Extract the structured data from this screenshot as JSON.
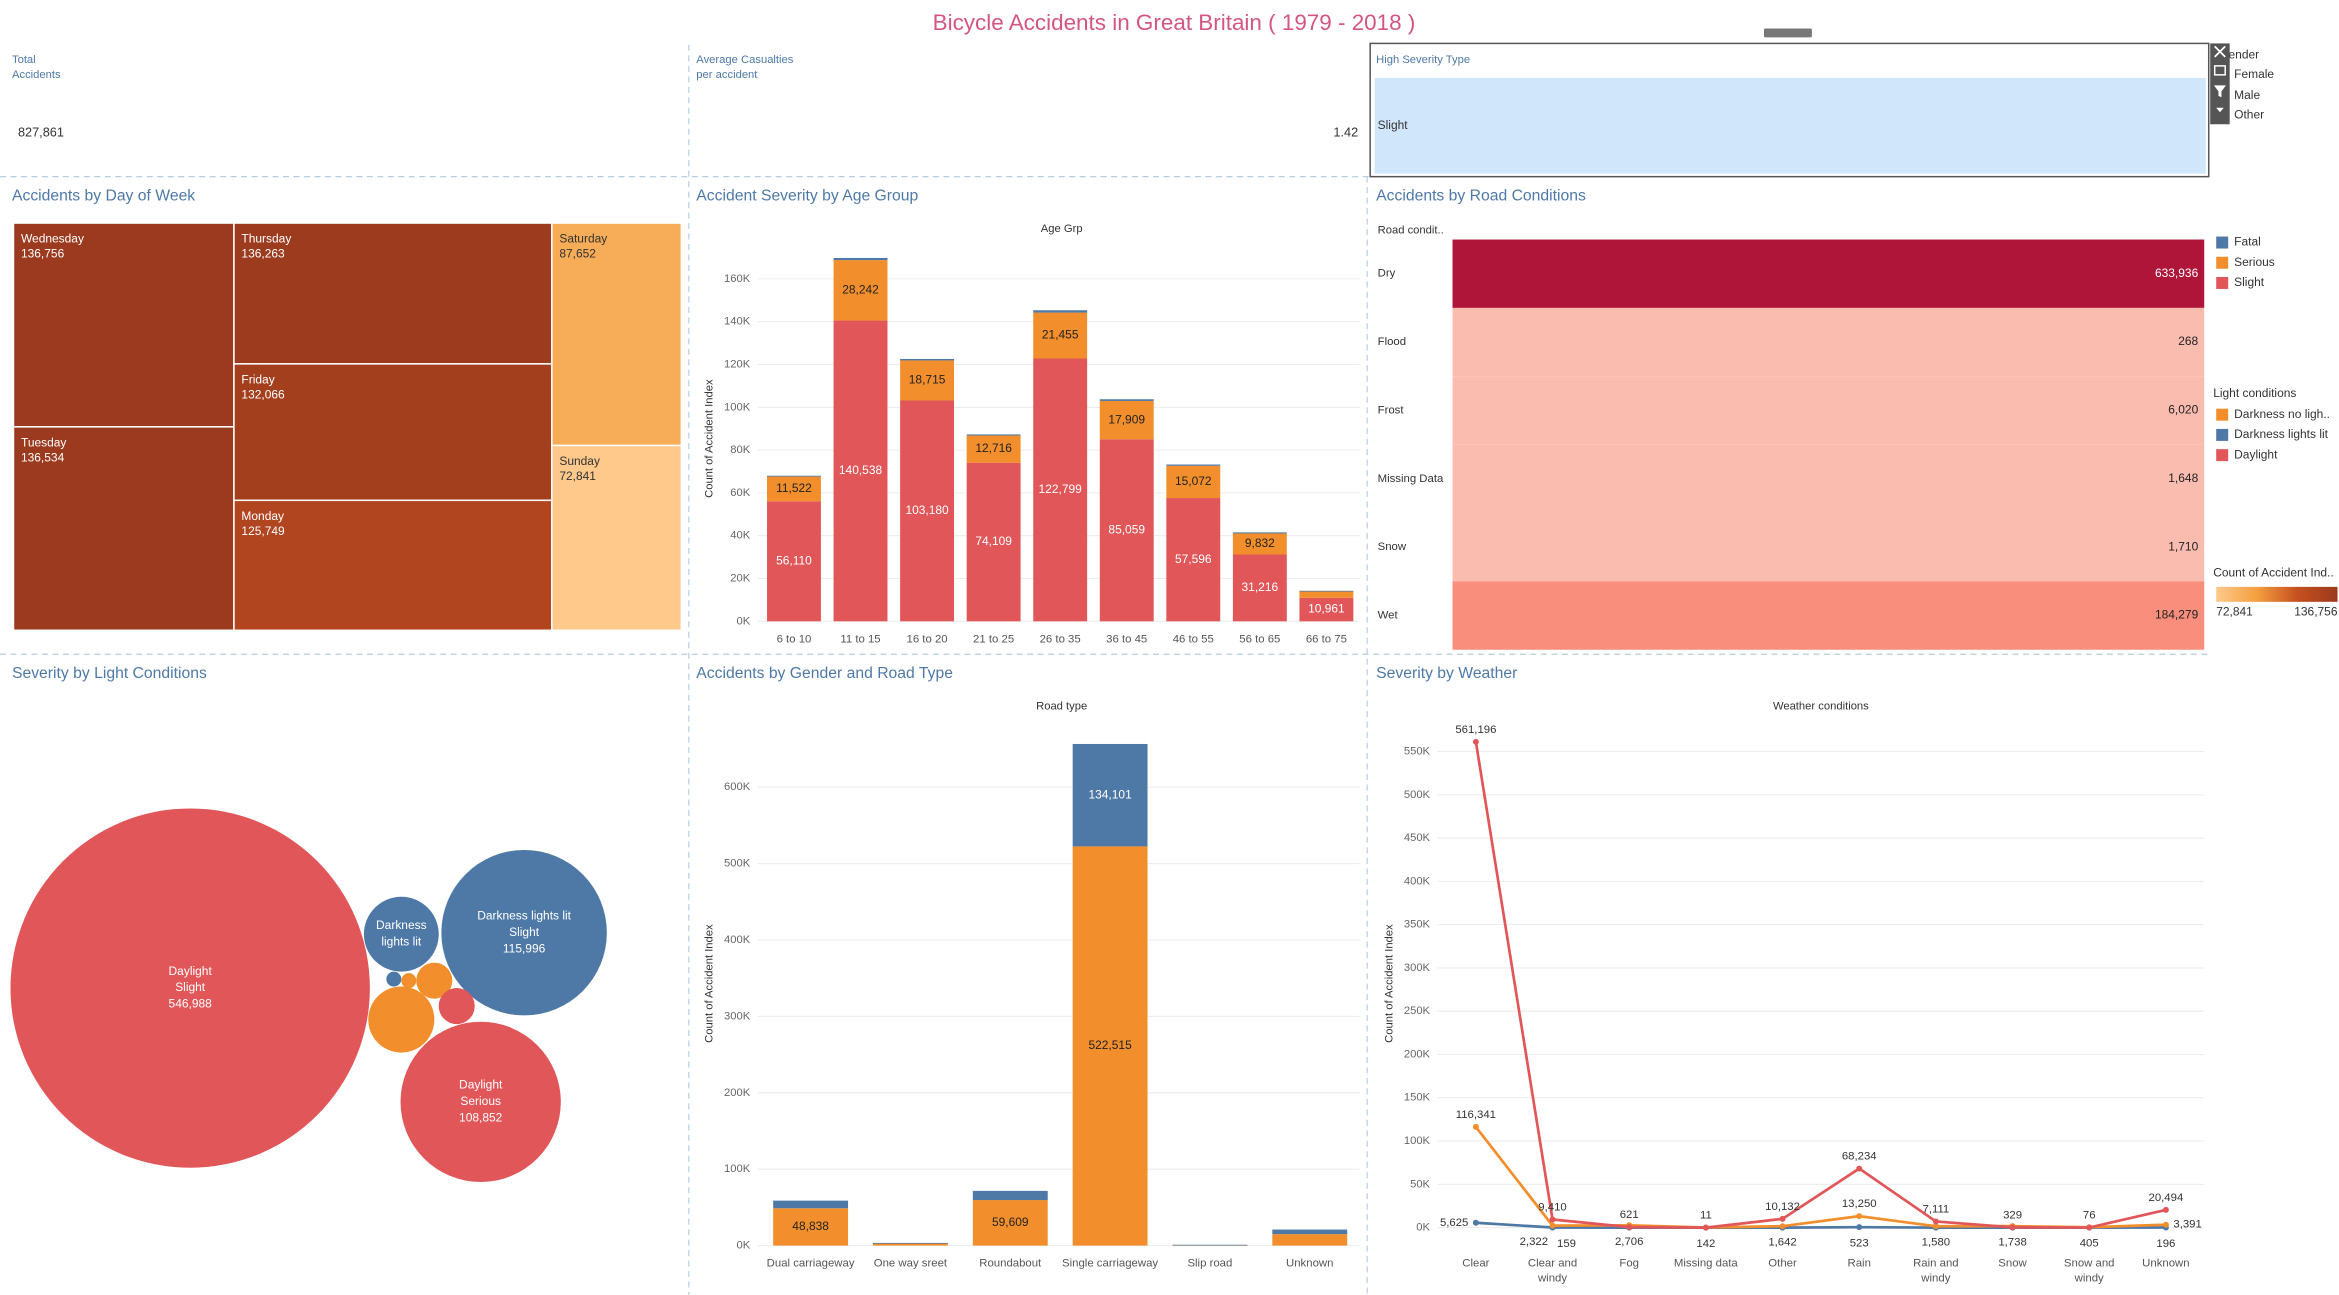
{
  "title": "Bicycle Accidents in Great Britain ( 1979 - 2018 )",
  "kpis": [
    {
      "label_lines": [
        "Total",
        "Accidents"
      ],
      "value": "827,861"
    },
    {
      "label_lines": [
        "Average Casualties",
        "per accident"
      ],
      "value": "1.42"
    }
  ],
  "severity_filter": {
    "title": "High Severity Type",
    "value": "Slight"
  },
  "gender_legend": {
    "title": "Gender",
    "items": [
      "Female",
      "Male",
      "Other"
    ]
  },
  "light_legend": {
    "title": "Light conditions",
    "items": [
      {
        "name": "Darkness no ligh..",
        "color": "#f28e2b"
      },
      {
        "name": "Darkness lights lit",
        "color": "#4e79a7"
      },
      {
        "name": "Daylight",
        "color": "#e15759"
      }
    ]
  },
  "chart_data": [
    {
      "type": "treemap",
      "title": "Accidents by Day of Week",
      "categories": [
        "Wednesday",
        "Tuesday",
        "Thursday",
        "Friday",
        "Monday",
        "Saturday",
        "Sunday"
      ],
      "values": [
        136756,
        136534,
        136263,
        132066,
        125749,
        87652,
        72841
      ],
      "value_labels": [
        "136,756",
        "136,534",
        "136,263",
        "132,066",
        "125,749",
        "87,652",
        "72,841"
      ],
      "color_legend": {
        "title": "Count of Accident Ind..",
        "range": [
          {
            "value": 72841,
            "label": "72,841"
          },
          {
            "value": 136756,
            "label": "136,756"
          }
        ],
        "colors": [
          "#fec98b",
          "#f4a040",
          "#c6501f",
          "#9b3a1e"
        ]
      }
    },
    {
      "type": "stacked_bar",
      "title": "Accident Severity by Age Group",
      "subtitle": "Age Grp",
      "y_label": "Count of Accident Index",
      "categories": [
        "6 to 10",
        "11 to 15",
        "16 to 20",
        "21 to 25",
        "26 to 35",
        "36 to 45",
        "46 to 55",
        "56 to 65",
        "66 to 75"
      ],
      "series": [
        {
          "name": "Fatal",
          "color": "#4e79a7",
          "values": [
            400,
            1000,
            700,
            500,
            1100,
            800,
            600,
            500,
            300
          ]
        },
        {
          "name": "Serious",
          "color": "#f28e2b",
          "values": [
            11522,
            28242,
            18715,
            12716,
            21455,
            17909,
            15072,
            9832,
            3000
          ],
          "value_labels": [
            "11,522",
            "28,242",
            "18,715",
            "12,716",
            "21,455",
            "17,909",
            "15,072",
            "9,832",
            null
          ]
        },
        {
          "name": "Slight",
          "color": "#e15759",
          "values": [
            56110,
            140538,
            103180,
            74109,
            122799,
            85059,
            57596,
            31216,
            10961
          ],
          "value_labels": [
            "56,110",
            "140,538",
            "103,180",
            "74,109",
            "122,799",
            "85,059",
            "57,596",
            "31,216",
            "10,961"
          ]
        }
      ],
      "ylim": [
        0,
        170000
      ],
      "yticks": [
        {
          "value": 0,
          "label": "0K"
        },
        {
          "value": 20000,
          "label": "20K"
        },
        {
          "value": 40000,
          "label": "40K"
        },
        {
          "value": 60000,
          "label": "60K"
        },
        {
          "value": 80000,
          "label": "80K"
        },
        {
          "value": 100000,
          "label": "100K"
        },
        {
          "value": 120000,
          "label": "120K"
        },
        {
          "value": 140000,
          "label": "140K"
        },
        {
          "value": 160000,
          "label": "160K"
        }
      ],
      "grid": true
    },
    {
      "type": "highlight_table",
      "title": "Accidents by Road Conditions",
      "header": "Road condit..",
      "categories": [
        "Dry",
        "Flood",
        "Frost",
        "Missing Data",
        "Snow",
        "Wet"
      ],
      "values": [
        633936,
        268,
        6020,
        1648,
        1710,
        184279
      ],
      "value_labels": [
        "633,936",
        "268",
        "6,020",
        "1,648",
        "1,710",
        "184,279"
      ],
      "colors": [
        "#ae1539",
        "#fbbcb0",
        "#fbbcb0",
        "#fbbcb0",
        "#fbbcb0",
        "#f98e7d"
      ]
    },
    {
      "type": "bubble",
      "title": "Severity by Light Conditions",
      "bubbles": [
        {
          "labels": [
            "Daylight",
            "Slight"
          ],
          "value": 546988,
          "value_label": "546,988",
          "color": "#e15759"
        },
        {
          "labels": [
            "Darkness",
            "lights lit"
          ],
          "value": 23700,
          "color": "#4e79a7"
        },
        {
          "labels": [
            "Darkness lights lit",
            "Slight"
          ],
          "value": 115996,
          "value_label": "115,996",
          "color": "#4e79a7"
        },
        {
          "labels": [
            "Daylight",
            "Serious"
          ],
          "value": 108852,
          "value_label": "108,852",
          "color": "#e15759"
        },
        {
          "value": 18500,
          "color": "#f28e2b"
        },
        {
          "value": 5500,
          "color": "#f28e2b"
        },
        {
          "value": 5500,
          "color": "#e15759"
        },
        {
          "value": 950,
          "color": "#4e79a7"
        },
        {
          "value": 950,
          "color": "#f28e2b"
        }
      ]
    },
    {
      "type": "stacked_bar",
      "title": "Accidents by Gender and Road Type",
      "subtitle": "Road type",
      "y_label": "Count of Accident Index",
      "categories": [
        "Dual carriageway",
        "One way sreet",
        "Roundabout",
        "Single carriageway",
        "Slip road",
        "Unknown"
      ],
      "series": [
        {
          "color": "#4e79a7",
          "values": [
            10000,
            500,
            12000,
            134101,
            300,
            6000
          ],
          "value_labels": [
            null,
            null,
            null,
            "134,101",
            null,
            null
          ]
        },
        {
          "color": "#f28e2b",
          "values": [
            48838,
            3000,
            59609,
            522515,
            800,
            15000
          ],
          "value_labels": [
            "48,838",
            null,
            "59,609",
            "522,515",
            null,
            null
          ]
        }
      ],
      "ylim": [
        0,
        680000
      ],
      "yticks": [
        {
          "value": 0,
          "label": "0K"
        },
        {
          "value": 100000,
          "label": "100K"
        },
        {
          "value": 200000,
          "label": "200K"
        },
        {
          "value": 300000,
          "label": "300K"
        },
        {
          "value": 400000,
          "label": "400K"
        },
        {
          "value": 500000,
          "label": "500K"
        },
        {
          "value": 600000,
          "label": "600K"
        }
      ],
      "grid": true
    },
    {
      "type": "line",
      "title": "Severity by Weather",
      "subtitle": "Weather conditions",
      "y_label": "Count of Accident Index",
      "categories": [
        "Clear",
        "Clear and windy",
        "Fog",
        "Missing data",
        "Other",
        "Rain",
        "Rain and windy",
        "Snow",
        "Snow and windy",
        "Unknown"
      ],
      "series": [
        {
          "color": "#4e79a7",
          "values": [
            5625,
            159,
            30,
            2,
            40,
            523,
            35,
            20,
            4,
            196
          ],
          "value_labels": [
            "5,625",
            "159",
            null,
            null,
            null,
            "523",
            null,
            null,
            null,
            "196"
          ]
        },
        {
          "color": "#f28e2b",
          "values": [
            116341,
            2322,
            2706,
            142,
            1642,
            13250,
            1580,
            1738,
            405,
            3391
          ],
          "value_labels": [
            "116,341",
            "2,322",
            "2,706",
            "142",
            "1,642",
            "13,250",
            "1,580",
            "1,738",
            "405",
            "3,391"
          ]
        },
        {
          "color": "#e15759",
          "values": [
            561196,
            9410,
            621,
            11,
            10132,
            68234,
            7111,
            329,
            76,
            20494
          ],
          "value_labels": [
            "561,196",
            "9,410",
            "621",
            "11",
            "10,132",
            "68,234",
            "7,111",
            "329",
            "76",
            "20,494"
          ]
        }
      ],
      "ylim": [
        0,
        588000
      ],
      "yticks": [
        {
          "value": 0,
          "label": "0K"
        },
        {
          "value": 50000,
          "label": "50K"
        },
        {
          "value": 100000,
          "label": "100K"
        },
        {
          "value": 150000,
          "label": "150K"
        },
        {
          "value": 200000,
          "label": "200K"
        },
        {
          "value": 250000,
          "label": "250K"
        },
        {
          "value": 300000,
          "label": "300K"
        },
        {
          "value": 350000,
          "label": "350K"
        },
        {
          "value": 400000,
          "label": "400K"
        },
        {
          "value": 450000,
          "label": "450K"
        },
        {
          "value": 500000,
          "label": "500K"
        },
        {
          "value": 550000,
          "label": "550K"
        }
      ],
      "grid": true
    }
  ]
}
